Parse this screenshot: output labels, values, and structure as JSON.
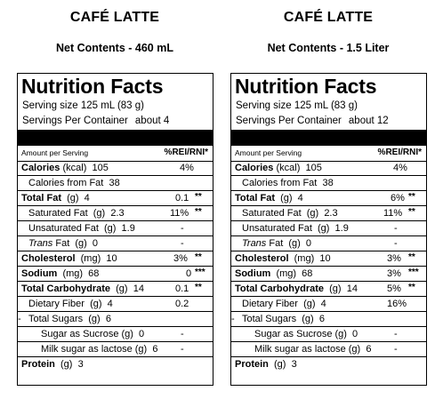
{
  "panels": [
    {
      "title": "CAFÉ LATTE",
      "contents": "Net Contents - 460 mL",
      "header": "Nutrition Facts",
      "serving_size": "Serving size   125 mL (83 g)",
      "servings_label": "Servings Per Container",
      "servings_value": "about 4",
      "amount_label": "Amount per Serving",
      "rei_label": "%REI/RNI*",
      "rows": [
        {
          "bold": "Calories",
          "text": " (kcal)  105",
          "value": "4%",
          "stars": ""
        },
        {
          "bold": "",
          "text": "Calories from Fat  38",
          "value": "",
          "stars": ""
        },
        {
          "bold": "Total Fat",
          "text": "  (g)  4",
          "value": "0.1",
          "stars": "**"
        },
        {
          "bold": "",
          "text": "Saturated Fat  (g)  2.3",
          "value": "11%",
          "stars": "**"
        },
        {
          "bold": "",
          "text": "Unsaturated Fat  (g)  1.9",
          "value": "-",
          "stars": ""
        },
        {
          "bold": "",
          "italic": "Trans",
          "text": " Fat  (g)  0",
          "value": "-",
          "stars": ""
        },
        {
          "bold": "Cholesterol",
          "text": "  (mg)  10",
          "value": "3%",
          "stars": "**"
        },
        {
          "bold": "Sodium",
          "text": "  (mg)  68",
          "value": "0",
          "stars": "***"
        },
        {
          "bold": "Total Carbohydrate",
          "text": "  (g)  14",
          "value": "0.1",
          "stars": "**"
        },
        {
          "bold": "",
          "text": "Dietary Fiber  (g)  4",
          "value": "0.2",
          "stars": ""
        },
        {
          "bold": "",
          "text": "Total Sugars  (g)  6",
          "value": "-",
          "stars": ""
        },
        {
          "bold": "",
          "text": "Sugar as Sucrose (g)  0",
          "value": "-",
          "stars": ""
        },
        {
          "bold": "",
          "text": "Milk sugar as lactose (g)  6",
          "value": "-",
          "stars": ""
        },
        {
          "bold": "Protein",
          "text": "  (g)  3",
          "value": "",
          "stars": ""
        }
      ]
    },
    {
      "title": "CAFÉ LATTE",
      "contents": "Net Contents - 1.5 Liter",
      "header": "Nutrition Facts",
      "serving_size": "Serving size   125 mL (83 g)",
      "servings_label": "Servings Per Container",
      "servings_value": "about 12",
      "amount_label": "Amount per Serving",
      "rei_label": "%REI/RNI*",
      "rows": [
        {
          "bold": "Calories",
          "text": " (kcal)  105",
          "value": "4%",
          "stars": ""
        },
        {
          "bold": "",
          "text": "Calories from Fat  38",
          "value": "",
          "stars": ""
        },
        {
          "bold": "Total Fat",
          "text": "  (g)  4",
          "value": "6%",
          "stars": "**"
        },
        {
          "bold": "",
          "text": "Saturated Fat  (g)  2.3",
          "value": "11%",
          "stars": "**"
        },
        {
          "bold": "",
          "text": "Unsaturated Fat  (g)  1.9",
          "value": "-",
          "stars": ""
        },
        {
          "bold": "",
          "italic": "Trans",
          "text": " Fat  (g)  0",
          "value": "-",
          "stars": ""
        },
        {
          "bold": "Cholesterol",
          "text": "  (mg)  10",
          "value": "3%",
          "stars": "**"
        },
        {
          "bold": "Sodium",
          "text": "  (mg)  68",
          "value": "3%",
          "stars": "***"
        },
        {
          "bold": "Total Carbohydrate",
          "text": "  (g)  14",
          "value": "5%",
          "stars": "**"
        },
        {
          "bold": "",
          "text": "Dietary Fiber  (g)  4",
          "value": "16%",
          "stars": ""
        },
        {
          "bold": "",
          "text": "Total Sugars  (g)  6",
          "value": "-",
          "stars": ""
        },
        {
          "bold": "",
          "text": "Sugar as Sucrose (g)  0",
          "value": "-",
          "stars": ""
        },
        {
          "bold": "",
          "text": "Milk sugar as lactose (g)  6",
          "value": "-",
          "stars": ""
        },
        {
          "bold": "Protein",
          "text": "  (g)  3",
          "value": "",
          "stars": ""
        }
      ]
    }
  ]
}
